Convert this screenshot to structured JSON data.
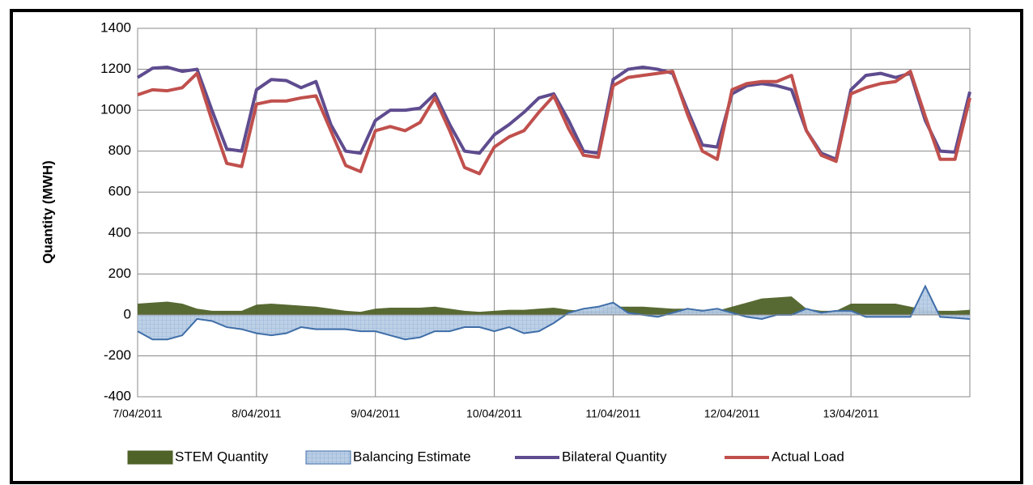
{
  "chart_data": {
    "type": "line",
    "ylabel": "Quantity (MWH)",
    "ylim": [
      -400,
      1400
    ],
    "yticks": [
      -400,
      -200,
      0,
      200,
      400,
      600,
      800,
      1000,
      1200,
      1400
    ],
    "grid": true,
    "legend": "bottom",
    "categories": [
      "7/04/2011",
      null,
      null,
      null,
      null,
      null,
      null,
      null,
      "8/04/2011",
      null,
      null,
      null,
      null,
      null,
      null,
      null,
      "9/04/2011",
      null,
      null,
      null,
      null,
      null,
      null,
      null,
      "10/04/2011",
      null,
      null,
      null,
      null,
      null,
      null,
      null,
      "11/04/2011",
      null,
      null,
      null,
      null,
      null,
      null,
      null,
      "12/04/2011",
      null,
      null,
      null,
      null,
      null,
      null,
      null,
      "13/04/2011",
      null,
      null,
      null,
      null,
      null,
      null,
      null,
      null
    ],
    "series": [
      {
        "name": "STEM Quantity",
        "style": "area",
        "color": "#4f6228",
        "line": "#4f6228",
        "values": [
          55,
          60,
          65,
          55,
          30,
          20,
          20,
          20,
          50,
          55,
          50,
          45,
          40,
          30,
          20,
          15,
          30,
          35,
          35,
          35,
          40,
          30,
          20,
          15,
          20,
          25,
          25,
          30,
          35,
          25,
          20,
          20,
          40,
          40,
          40,
          35,
          30,
          30,
          25,
          20,
          40,
          60,
          80,
          85,
          90,
          30,
          20,
          20,
          55,
          55,
          55,
          55,
          40,
          25,
          20,
          20,
          25
        ]
      },
      {
        "name": "Balancing Estimate",
        "style": "area",
        "color": "#b9cde5",
        "line": "#3f6ea8",
        "values": [
          -80,
          -120,
          -120,
          -100,
          -20,
          -30,
          -60,
          -70,
          -90,
          -100,
          -90,
          -60,
          -70,
          -70,
          -70,
          -80,
          -80,
          -100,
          -120,
          -110,
          -80,
          -80,
          -60,
          -60,
          -80,
          -60,
          -90,
          -80,
          -40,
          10,
          30,
          40,
          60,
          10,
          0,
          -10,
          10,
          30,
          20,
          30,
          10,
          -10,
          -20,
          0,
          0,
          30,
          10,
          20,
          20,
          -10,
          -10,
          -10,
          -10,
          140,
          -10,
          -15,
          -20
        ]
      },
      {
        "name": "Bilateral Quantity",
        "style": "line",
        "color": "#5f4c8f",
        "values": [
          1160,
          1205,
          1210,
          1190,
          1200,
          1000,
          810,
          800,
          1100,
          1150,
          1145,
          1110,
          1140,
          930,
          800,
          790,
          950,
          1000,
          1000,
          1010,
          1080,
          930,
          800,
          790,
          880,
          930,
          990,
          1060,
          1080,
          950,
          800,
          790,
          1150,
          1200,
          1210,
          1200,
          1180,
          1000,
          830,
          820,
          1080,
          1120,
          1130,
          1120,
          1100,
          900,
          790,
          760,
          1100,
          1170,
          1180,
          1160,
          1180,
          950,
          800,
          795,
          1090
        ]
      },
      {
        "name": "Actual Load",
        "style": "line",
        "color": "#c0504d",
        "values": [
          1075,
          1100,
          1095,
          1110,
          1180,
          950,
          740,
          725,
          1030,
          1045,
          1045,
          1060,
          1070,
          900,
          730,
          700,
          900,
          920,
          900,
          940,
          1060,
          900,
          720,
          690,
          820,
          870,
          900,
          990,
          1070,
          910,
          780,
          770,
          1120,
          1160,
          1170,
          1180,
          1190,
          980,
          800,
          760,
          1100,
          1130,
          1140,
          1140,
          1170,
          900,
          780,
          750,
          1080,
          1110,
          1130,
          1140,
          1190,
          970,
          760,
          760,
          1060
        ]
      }
    ]
  }
}
